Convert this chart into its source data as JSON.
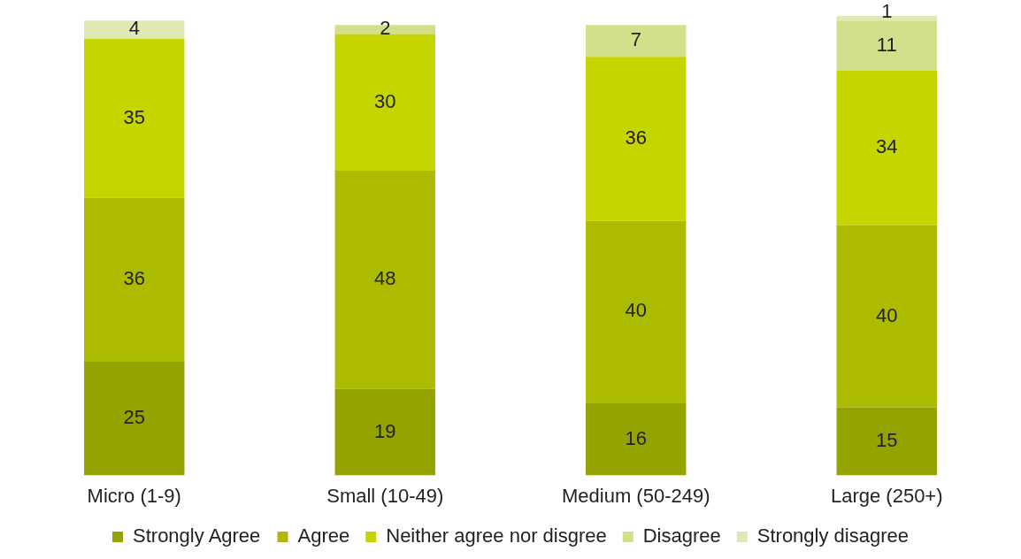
{
  "chart_data": {
    "type": "bar",
    "stacked": true,
    "data_labels": true,
    "legend": "bottom",
    "grid": false,
    "categories": [
      "Micro (1-9)",
      "Small (10-49)",
      "Medium (50-249)",
      "Large (250+)"
    ],
    "series": [
      {
        "name": "Strongly Agree",
        "color": "#95a300",
        "values": [
          25,
          19,
          16,
          15
        ]
      },
      {
        "name": "Agree",
        "color": "#adbb00",
        "values": [
          36,
          48,
          40,
          40
        ]
      },
      {
        "name": "Neither agree nor disgree",
        "color": "#c5d500",
        "values": [
          35,
          30,
          36,
          34
        ]
      },
      {
        "name": "Disagree",
        "color": "#d3df8a",
        "values": [
          null,
          2,
          7,
          11
        ]
      },
      {
        "name": "Strongly disagree",
        "color": "#e0e8b5",
        "values": [
          4,
          null,
          null,
          1
        ]
      }
    ]
  }
}
